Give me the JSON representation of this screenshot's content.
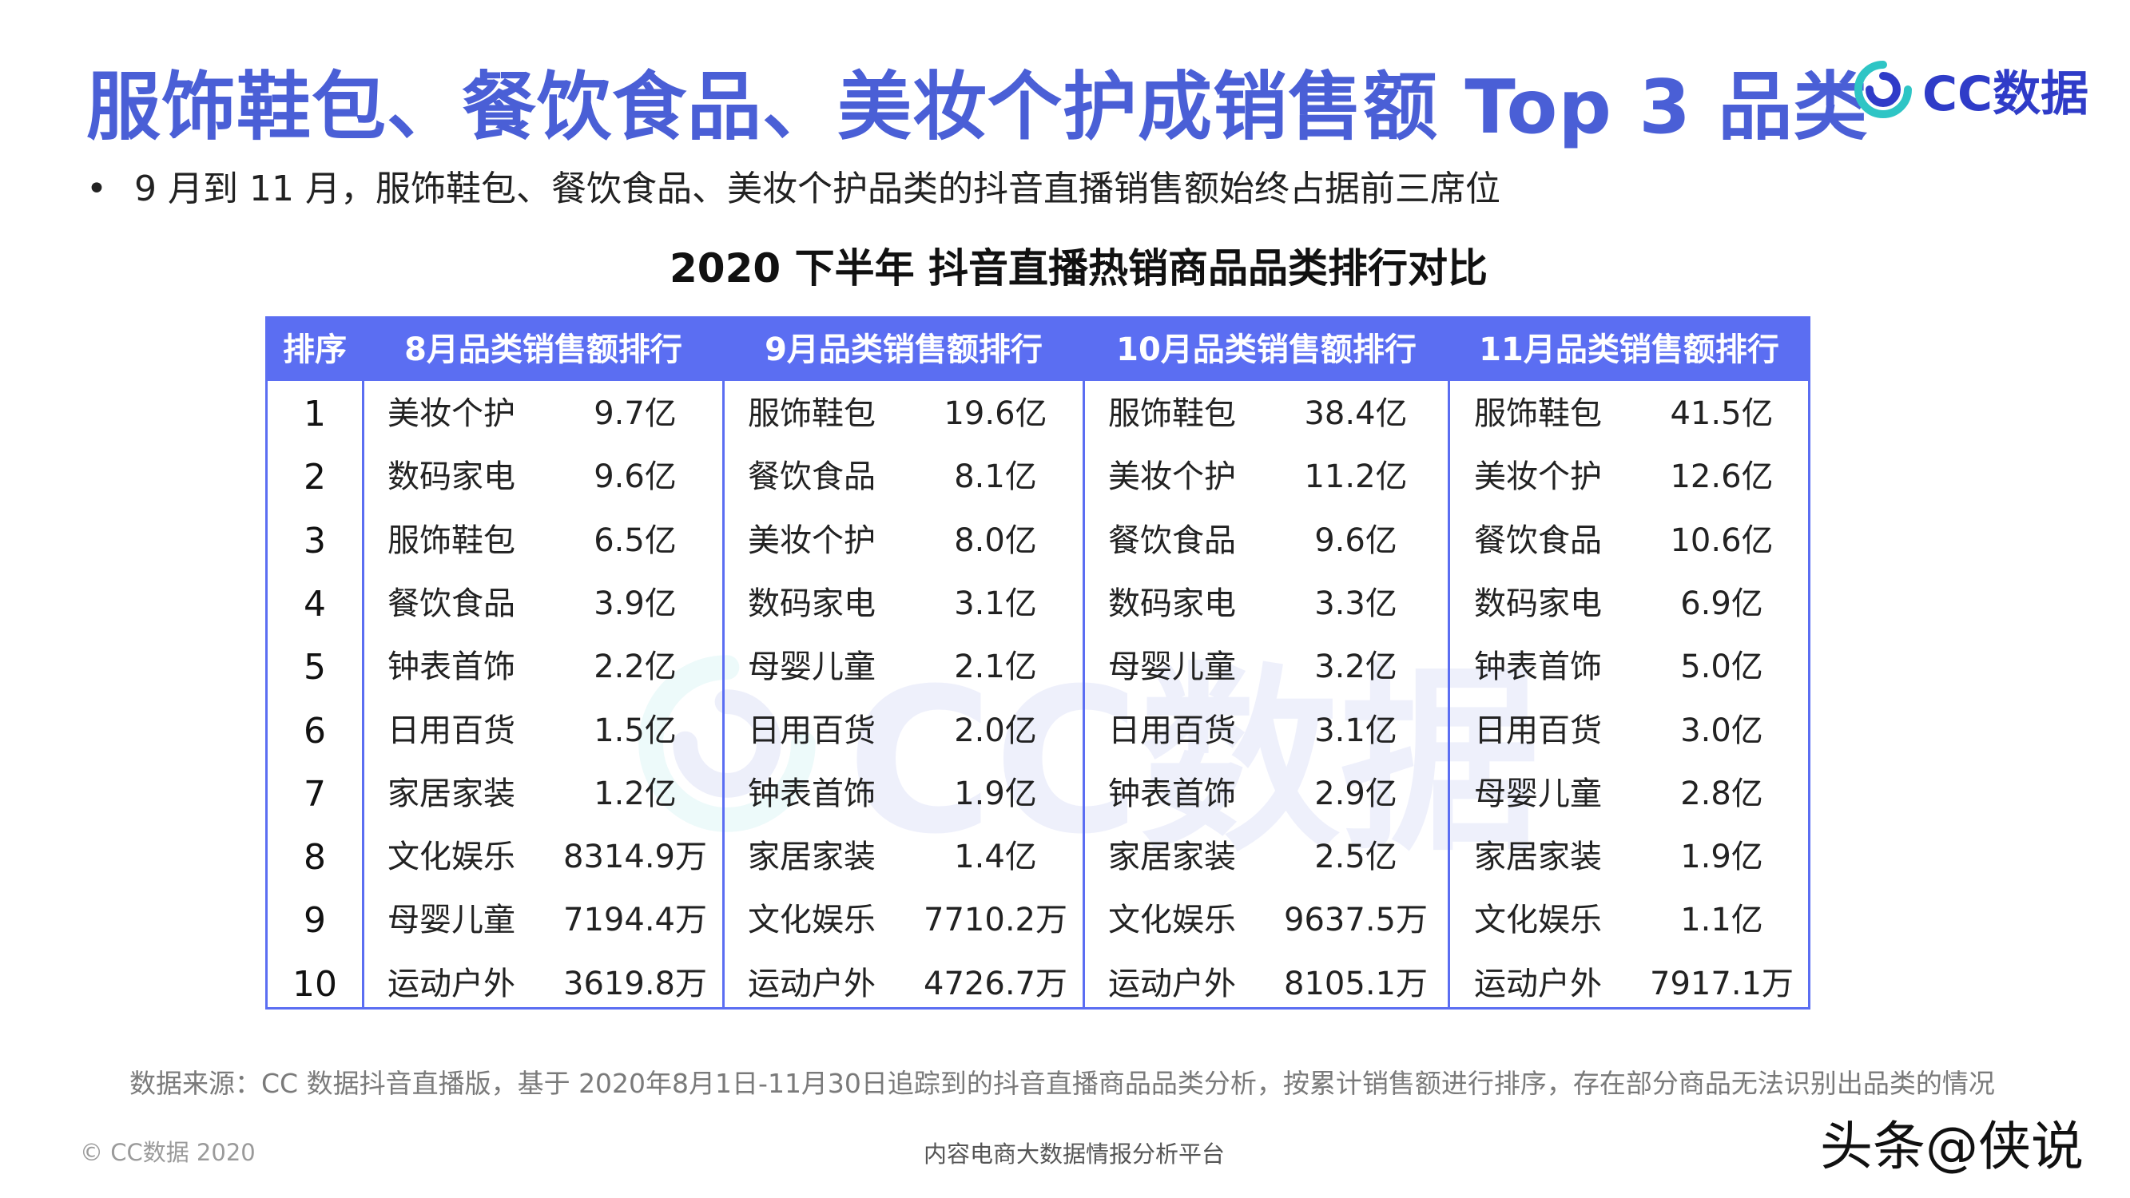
{
  "header": {
    "title": "服饰鞋包、餐饮食品、美妆个护成销售额 Top 3 品类",
    "logo_text": "CC数据",
    "logo_icon": "cc-data-logo-icon"
  },
  "bullet": {
    "text": "9 月到 11 月，服饰鞋包、餐饮食品、美妆个护品类的抖音直播销售额始终占据前三席位"
  },
  "table": {
    "title": "2020 下半年 抖音直播热销商品品类排行对比",
    "rank_header": "排序",
    "month_headers": [
      "8月品类销售额排行",
      "9月品类销售额排行",
      "10月品类销售额排行",
      "11月品类销售额排行"
    ],
    "rows": [
      {
        "rank": "1",
        "cells": [
          [
            "美妆个护",
            "9.7亿"
          ],
          [
            "服饰鞋包",
            "19.6亿"
          ],
          [
            "服饰鞋包",
            "38.4亿"
          ],
          [
            "服饰鞋包",
            "41.5亿"
          ]
        ]
      },
      {
        "rank": "2",
        "cells": [
          [
            "数码家电",
            "9.6亿"
          ],
          [
            "餐饮食品",
            "8.1亿"
          ],
          [
            "美妆个护",
            "11.2亿"
          ],
          [
            "美妆个护",
            "12.6亿"
          ]
        ]
      },
      {
        "rank": "3",
        "cells": [
          [
            "服饰鞋包",
            "6.5亿"
          ],
          [
            "美妆个护",
            "8.0亿"
          ],
          [
            "餐饮食品",
            "9.6亿"
          ],
          [
            "餐饮食品",
            "10.6亿"
          ]
        ]
      },
      {
        "rank": "4",
        "cells": [
          [
            "餐饮食品",
            "3.9亿"
          ],
          [
            "数码家电",
            "3.1亿"
          ],
          [
            "数码家电",
            "3.3亿"
          ],
          [
            "数码家电",
            "6.9亿"
          ]
        ]
      },
      {
        "rank": "5",
        "cells": [
          [
            "钟表首饰",
            "2.2亿"
          ],
          [
            "母婴儿童",
            "2.1亿"
          ],
          [
            "母婴儿童",
            "3.2亿"
          ],
          [
            "钟表首饰",
            "5.0亿"
          ]
        ]
      },
      {
        "rank": "6",
        "cells": [
          [
            "日用百货",
            "1.5亿"
          ],
          [
            "日用百货",
            "2.0亿"
          ],
          [
            "日用百货",
            "3.1亿"
          ],
          [
            "日用百货",
            "3.0亿"
          ]
        ]
      },
      {
        "rank": "7",
        "cells": [
          [
            "家居家装",
            "1.2亿"
          ],
          [
            "钟表首饰",
            "1.9亿"
          ],
          [
            "钟表首饰",
            "2.9亿"
          ],
          [
            "母婴儿童",
            "2.8亿"
          ]
        ]
      },
      {
        "rank": "8",
        "cells": [
          [
            "文化娱乐",
            "8314.9万"
          ],
          [
            "家居家装",
            "1.4亿"
          ],
          [
            "家居家装",
            "2.5亿"
          ],
          [
            "家居家装",
            "1.9亿"
          ]
        ]
      },
      {
        "rank": "9",
        "cells": [
          [
            "母婴儿童",
            "7194.4万"
          ],
          [
            "文化娱乐",
            "7710.2万"
          ],
          [
            "文化娱乐",
            "9637.5万"
          ],
          [
            "文化娱乐",
            "1.1亿"
          ]
        ]
      },
      {
        "rank": "10",
        "cells": [
          [
            "运动户外",
            "3619.8万"
          ],
          [
            "运动户外",
            "4726.7万"
          ],
          [
            "运动户外",
            "8105.1万"
          ],
          [
            "运动户外",
            "7917.1万"
          ]
        ]
      }
    ]
  },
  "watermark": {
    "text": "CC数据"
  },
  "footer": {
    "source": "数据来源：CC 数据抖音直播版，基于 2020年8月1日-11月30日追踪到的抖音直播商品品类分析，按累计销售额进行排序，存在部分商品无法识别出品类的情况",
    "copyright": "© CC数据 2020",
    "platform": "内容电商大数据情报分析平台",
    "stamp": "头条@侠说"
  },
  "colors": {
    "accent": "#5b6ef2",
    "title": "#4a5fd6",
    "logo": "#2f3cc8"
  }
}
